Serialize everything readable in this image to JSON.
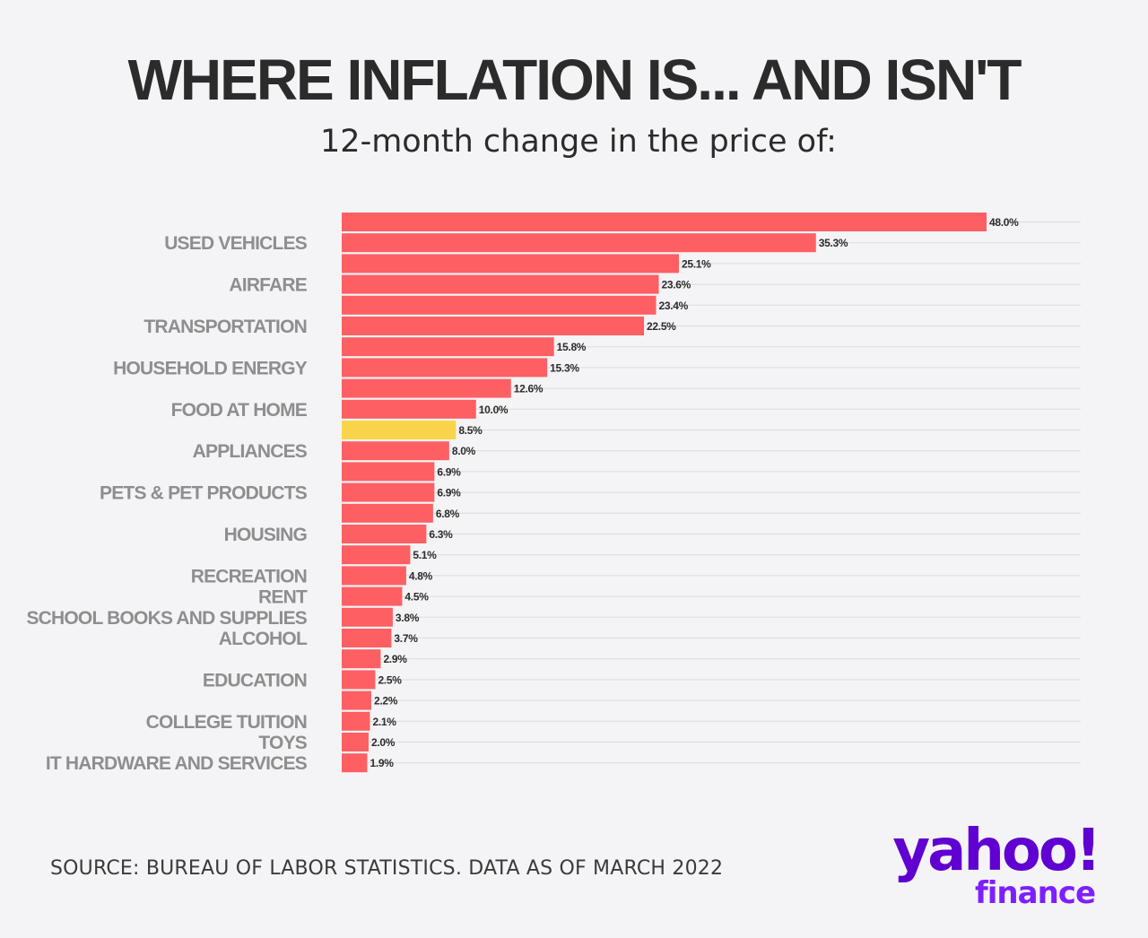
{
  "chart_data": {
    "type": "bar",
    "orientation": "horizontal",
    "title": "WHERE INFLATION IS... AND ISN'T",
    "subtitle": "12-month change in the price of:",
    "unit": "%",
    "xlim": [
      0,
      48
    ],
    "grid": true,
    "highlight_color": "#f9d44a",
    "bar_color": "#fe5f63",
    "bars": [
      {
        "value": 48.0,
        "label": "48.0%",
        "category": ""
      },
      {
        "value": 35.3,
        "label": "35.3%",
        "category": "USED VEHICLES"
      },
      {
        "value": 25.1,
        "label": "25.1%",
        "category": ""
      },
      {
        "value": 23.6,
        "label": "23.6%",
        "category": "AIRFARE"
      },
      {
        "value": 23.4,
        "label": "23.4%",
        "category": ""
      },
      {
        "value": 22.5,
        "label": "22.5%",
        "category": "TRANSPORTATION"
      },
      {
        "value": 15.8,
        "label": "15.8%",
        "category": ""
      },
      {
        "value": 15.3,
        "label": "15.3%",
        "category": "HOUSEHOLD ENERGY"
      },
      {
        "value": 12.6,
        "label": "12.6%",
        "category": ""
      },
      {
        "value": 10.0,
        "label": "10.0%",
        "category": "FOOD AT HOME"
      },
      {
        "value": 8.5,
        "label": "8.5%",
        "category": "",
        "highlight": true
      },
      {
        "value": 8.0,
        "label": "8.0%",
        "category": "APPLIANCES"
      },
      {
        "value": 6.9,
        "label": "6.9%",
        "category": ""
      },
      {
        "value": 6.9,
        "label": "6.9%",
        "category": "PETS & PET PRODUCTS"
      },
      {
        "value": 6.8,
        "label": "6.8%",
        "category": ""
      },
      {
        "value": 6.3,
        "label": "6.3%",
        "category": "HOUSING"
      },
      {
        "value": 5.1,
        "label": "5.1%",
        "category": ""
      },
      {
        "value": 4.8,
        "label": "4.8%",
        "category": "RECREATION"
      },
      {
        "value": 4.5,
        "label": "4.5%",
        "category": "RENT"
      },
      {
        "value": 3.8,
        "label": "3.8%",
        "category": "SCHOOL BOOKS AND SUPPLIES"
      },
      {
        "value": 3.7,
        "label": "3.7%",
        "category": "ALCOHOL"
      },
      {
        "value": 2.9,
        "label": "2.9%",
        "category": ""
      },
      {
        "value": 2.5,
        "label": "2.5%",
        "category": "EDUCATION"
      },
      {
        "value": 2.2,
        "label": "2.2%",
        "category": ""
      },
      {
        "value": 2.1,
        "label": "2.1%",
        "category": "COLLEGE TUITION"
      },
      {
        "value": 2.0,
        "label": "2.0%",
        "category": "TOYS"
      },
      {
        "value": 1.9,
        "label": "1.9%",
        "category": "IT HARDWARE AND SERVICES"
      }
    ]
  },
  "footer": {
    "source": "SOURCE: BUREAU OF LABOR STATISTICS. DATA AS OF MARCH 2022"
  },
  "logo": {
    "brand": "yahoo!",
    "product": "finance"
  }
}
